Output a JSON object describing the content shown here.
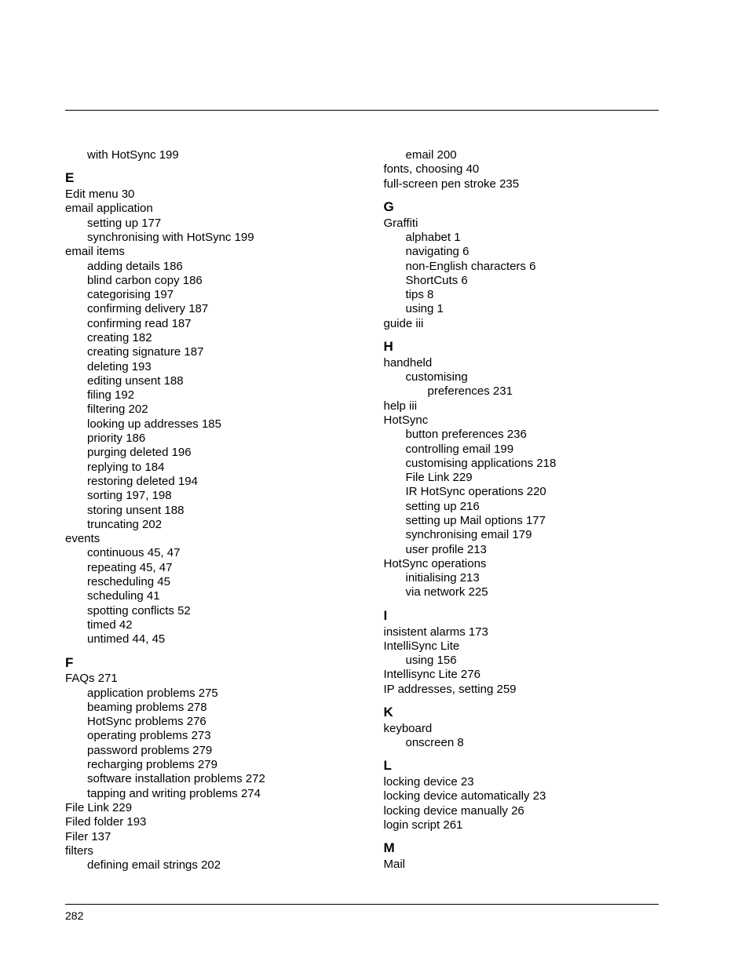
{
  "page_number": "282",
  "colors": {
    "text": "#000000",
    "background": "#ffffff",
    "rule": "#000000"
  },
  "font": {
    "family": "Helvetica Neue",
    "body_size_pt": 11,
    "heading_size_pt": 13,
    "heading_weight": 700
  },
  "left_column": [
    {
      "type": "entry",
      "level": 1,
      "text": "with HotSync",
      "pages": "199"
    },
    {
      "type": "heading",
      "text": "E"
    },
    {
      "type": "entry",
      "level": 0,
      "text": "Edit menu",
      "pages": "30"
    },
    {
      "type": "entry",
      "level": 0,
      "text": "email application",
      "pages": ""
    },
    {
      "type": "entry",
      "level": 1,
      "text": "setting up",
      "pages": "177"
    },
    {
      "type": "entry",
      "level": 1,
      "text": "synchronising with HotSync",
      "pages": "199"
    },
    {
      "type": "entry",
      "level": 0,
      "text": "email items",
      "pages": ""
    },
    {
      "type": "entry",
      "level": 1,
      "text": "adding details",
      "pages": "186"
    },
    {
      "type": "entry",
      "level": 1,
      "text": "blind carbon copy",
      "pages": "186"
    },
    {
      "type": "entry",
      "level": 1,
      "text": "categorising",
      "pages": "197"
    },
    {
      "type": "entry",
      "level": 1,
      "text": "confirming delivery",
      "pages": "187"
    },
    {
      "type": "entry",
      "level": 1,
      "text": "confirming read",
      "pages": "187"
    },
    {
      "type": "entry",
      "level": 1,
      "text": "creating",
      "pages": "182"
    },
    {
      "type": "entry",
      "level": 1,
      "text": "creating signature",
      "pages": "187"
    },
    {
      "type": "entry",
      "level": 1,
      "text": "deleting",
      "pages": "193"
    },
    {
      "type": "entry",
      "level": 1,
      "text": "editing unsent",
      "pages": "188"
    },
    {
      "type": "entry",
      "level": 1,
      "text": "filing",
      "pages": "192"
    },
    {
      "type": "entry",
      "level": 1,
      "text": "filtering",
      "pages": "202"
    },
    {
      "type": "entry",
      "level": 1,
      "text": "looking up addresses",
      "pages": "185"
    },
    {
      "type": "entry",
      "level": 1,
      "text": "priority",
      "pages": "186"
    },
    {
      "type": "entry",
      "level": 1,
      "text": "purging deleted",
      "pages": "196"
    },
    {
      "type": "entry",
      "level": 1,
      "text": "replying to",
      "pages": "184"
    },
    {
      "type": "entry",
      "level": 1,
      "text": "restoring deleted",
      "pages": "194"
    },
    {
      "type": "entry",
      "level": 1,
      "text": "sorting",
      "pages": "197, 198"
    },
    {
      "type": "entry",
      "level": 1,
      "text": "storing unsent",
      "pages": "188"
    },
    {
      "type": "entry",
      "level": 1,
      "text": "truncating",
      "pages": "202"
    },
    {
      "type": "entry",
      "level": 0,
      "text": "events",
      "pages": ""
    },
    {
      "type": "entry",
      "level": 1,
      "text": "continuous",
      "pages": "45, 47"
    },
    {
      "type": "entry",
      "level": 1,
      "text": "repeating",
      "pages": "45, 47"
    },
    {
      "type": "entry",
      "level": 1,
      "text": "rescheduling",
      "pages": "45"
    },
    {
      "type": "entry",
      "level": 1,
      "text": "scheduling",
      "pages": "41"
    },
    {
      "type": "entry",
      "level": 1,
      "text": "spotting conflicts",
      "pages": "52"
    },
    {
      "type": "entry",
      "level": 1,
      "text": "timed",
      "pages": "42"
    },
    {
      "type": "entry",
      "level": 1,
      "text": "untimed",
      "pages": "44, 45"
    },
    {
      "type": "heading",
      "text": "F"
    },
    {
      "type": "entry",
      "level": 0,
      "text": "FAQs",
      "pages": "271"
    },
    {
      "type": "entry",
      "level": 1,
      "text": "application problems",
      "pages": "275"
    },
    {
      "type": "entry",
      "level": 1,
      "text": "beaming problems",
      "pages": "278"
    },
    {
      "type": "entry",
      "level": 1,
      "text": "HotSync problems",
      "pages": "276"
    },
    {
      "type": "entry",
      "level": 1,
      "text": "operating problems",
      "pages": "273"
    },
    {
      "type": "entry",
      "level": 1,
      "text": "password problems",
      "pages": "279"
    },
    {
      "type": "entry",
      "level": 1,
      "text": "recharging problems",
      "pages": "279"
    },
    {
      "type": "entry",
      "level": 1,
      "text": "software installation problems",
      "pages": "272"
    },
    {
      "type": "entry",
      "level": 1,
      "text": "tapping and writing problems",
      "pages": "274"
    },
    {
      "type": "entry",
      "level": 0,
      "text": "File Link",
      "pages": "229"
    },
    {
      "type": "entry",
      "level": 0,
      "text": "Filed folder",
      "pages": "193"
    },
    {
      "type": "entry",
      "level": 0,
      "text": "Filer",
      "pages": "137"
    },
    {
      "type": "entry",
      "level": 0,
      "text": "filters",
      "pages": ""
    },
    {
      "type": "entry",
      "level": 1,
      "text": "defining email strings",
      "pages": "202"
    }
  ],
  "right_column": [
    {
      "type": "entry",
      "level": 1,
      "text": "email",
      "pages": "200"
    },
    {
      "type": "entry",
      "level": 0,
      "text": "fonts, choosing",
      "pages": "40"
    },
    {
      "type": "entry",
      "level": 0,
      "text": "full-screen pen stroke",
      "pages": "235"
    },
    {
      "type": "heading",
      "text": "G"
    },
    {
      "type": "entry",
      "level": 0,
      "text": "Graffiti",
      "pages": ""
    },
    {
      "type": "entry",
      "level": 1,
      "text": "alphabet",
      "pages": "1"
    },
    {
      "type": "entry",
      "level": 1,
      "text": "navigating",
      "pages": "6"
    },
    {
      "type": "entry",
      "level": 1,
      "text": "non-English characters",
      "pages": "6"
    },
    {
      "type": "entry",
      "level": 1,
      "text": "ShortCuts",
      "pages": "6"
    },
    {
      "type": "entry",
      "level": 1,
      "text": "tips",
      "pages": "8"
    },
    {
      "type": "entry",
      "level": 1,
      "text": "using",
      "pages": "1"
    },
    {
      "type": "entry",
      "level": 0,
      "text": "guide",
      "pages": "iii"
    },
    {
      "type": "heading",
      "text": "H"
    },
    {
      "type": "entry",
      "level": 0,
      "text": "handheld",
      "pages": ""
    },
    {
      "type": "entry",
      "level": 1,
      "text": "customising",
      "pages": ""
    },
    {
      "type": "entry",
      "level": 2,
      "text": "preferences",
      "pages": "231"
    },
    {
      "type": "entry",
      "level": 0,
      "text": "help",
      "pages": "iii"
    },
    {
      "type": "entry",
      "level": 0,
      "text": "HotSync",
      "pages": ""
    },
    {
      "type": "entry",
      "level": 1,
      "text": "button preferences",
      "pages": "236"
    },
    {
      "type": "entry",
      "level": 1,
      "text": "controlling email",
      "pages": "199"
    },
    {
      "type": "entry",
      "level": 1,
      "text": "customising applications",
      "pages": "218"
    },
    {
      "type": "entry",
      "level": 1,
      "text": "File Link",
      "pages": "229"
    },
    {
      "type": "entry",
      "level": 1,
      "text": "IR HotSync operations",
      "pages": "220"
    },
    {
      "type": "entry",
      "level": 1,
      "text": "setting up",
      "pages": "216"
    },
    {
      "type": "entry",
      "level": 1,
      "text": "setting up Mail options",
      "pages": "177"
    },
    {
      "type": "entry",
      "level": 1,
      "text": "synchronising email",
      "pages": "179"
    },
    {
      "type": "entry",
      "level": 1,
      "text": "user profile",
      "pages": "213"
    },
    {
      "type": "entry",
      "level": 0,
      "text": "HotSync operations",
      "pages": ""
    },
    {
      "type": "entry",
      "level": 1,
      "text": "initialising",
      "pages": "213"
    },
    {
      "type": "entry",
      "level": 1,
      "text": "via network",
      "pages": "225"
    },
    {
      "type": "heading",
      "text": "I"
    },
    {
      "type": "entry",
      "level": 0,
      "text": "insistent alarms",
      "pages": "173"
    },
    {
      "type": "entry",
      "level": 0,
      "text": "IntelliSync Lite",
      "pages": ""
    },
    {
      "type": "entry",
      "level": 1,
      "text": "using",
      "pages": "156"
    },
    {
      "type": "entry",
      "level": 0,
      "text": "Intellisync Lite",
      "pages": "276"
    },
    {
      "type": "entry",
      "level": 0,
      "text": "IP addresses, setting",
      "pages": "259"
    },
    {
      "type": "heading",
      "text": "K"
    },
    {
      "type": "entry",
      "level": 0,
      "text": "keyboard",
      "pages": ""
    },
    {
      "type": "entry",
      "level": 1,
      "text": "onscreen",
      "pages": "8"
    },
    {
      "type": "heading",
      "text": "L"
    },
    {
      "type": "entry",
      "level": 0,
      "text": "locking device",
      "pages": "23"
    },
    {
      "type": "entry",
      "level": 0,
      "text": "locking device automatically",
      "pages": "23"
    },
    {
      "type": "entry",
      "level": 0,
      "text": "locking device manually",
      "pages": "26"
    },
    {
      "type": "entry",
      "level": 0,
      "text": "login script",
      "pages": "261"
    },
    {
      "type": "heading",
      "text": "M"
    },
    {
      "type": "entry",
      "level": 0,
      "text": "Mail",
      "pages": ""
    }
  ]
}
